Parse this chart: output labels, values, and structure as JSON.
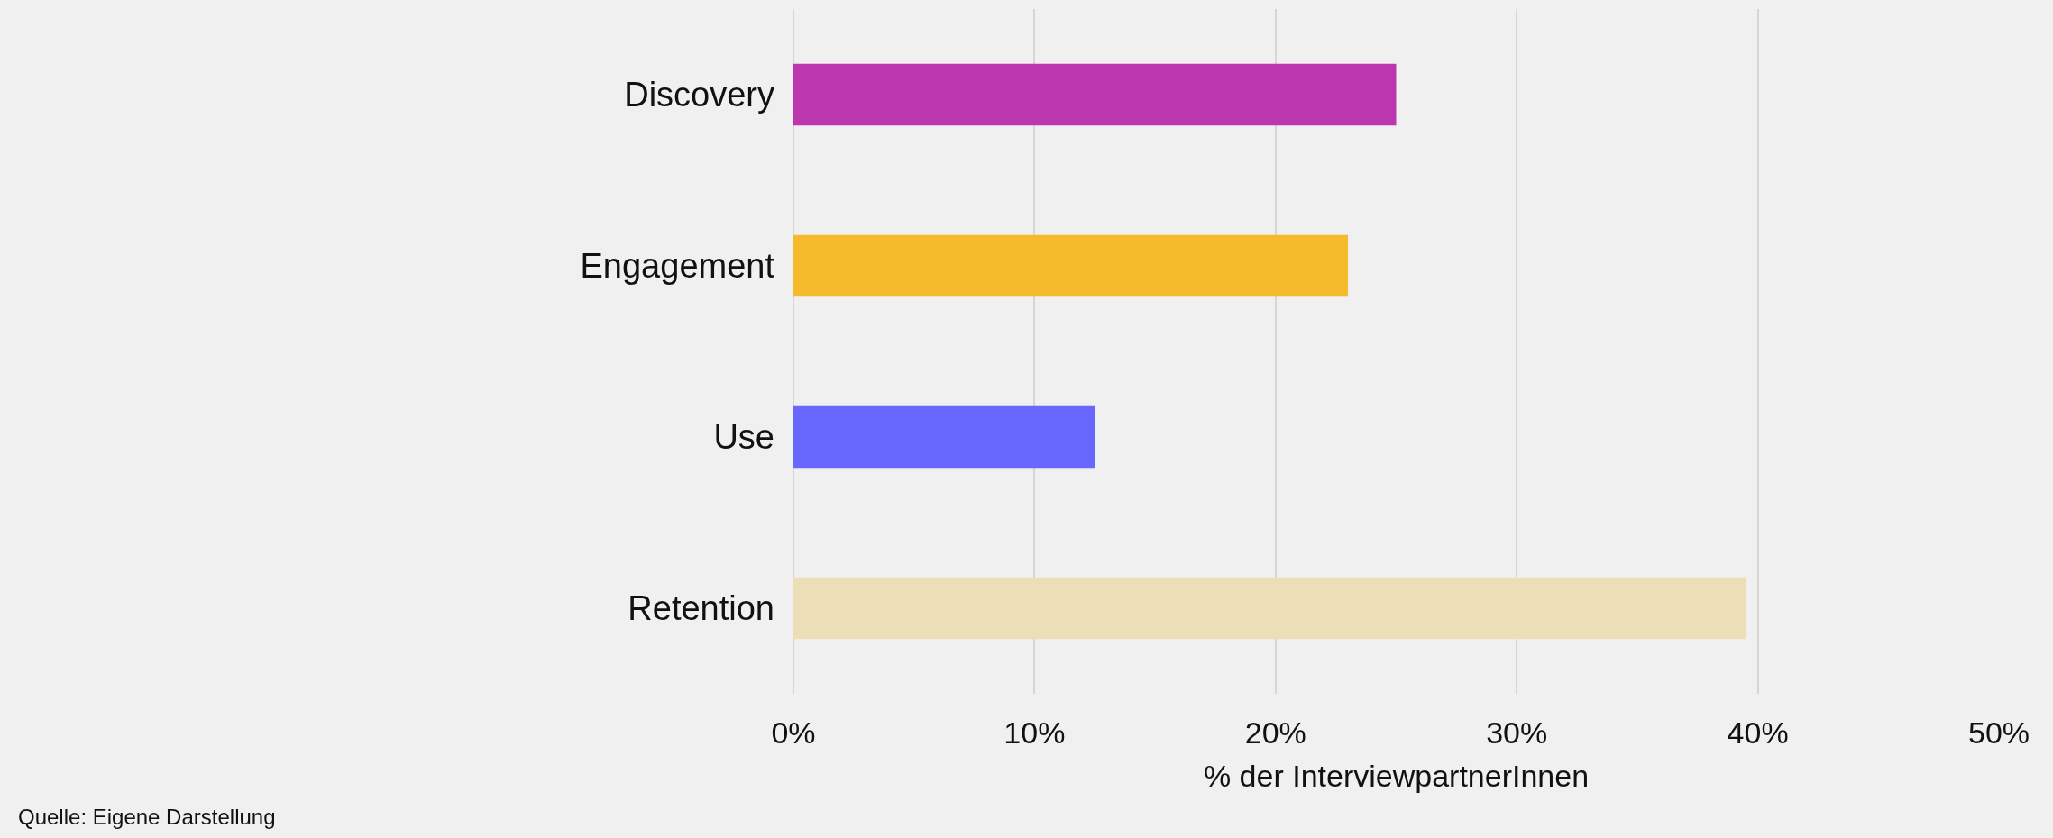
{
  "chart_data": {
    "type": "bar",
    "orientation": "horizontal",
    "categories": [
      "Discovery",
      "Engagement",
      "Use",
      "Retention"
    ],
    "values": [
      25,
      23,
      12.5,
      39.5
    ],
    "colors": [
      "#bb36af",
      "#f5bb2d",
      "#6868ff",
      "#ecdeb6"
    ],
    "xlim": [
      0,
      50
    ],
    "xticks": [
      {
        "value": 0,
        "label": "0%"
      },
      {
        "value": 10,
        "label": "10%"
      },
      {
        "value": 20,
        "label": "20%"
      },
      {
        "value": 30,
        "label": "30%"
      },
      {
        "value": 40,
        "label": "40%"
      },
      {
        "value": 50,
        "label": "50%"
      }
    ],
    "xlabel": "% der InterviewpartnerInnen",
    "grid": "x",
    "annotations": [
      "Quelle: Eigene Darstellung"
    ]
  }
}
